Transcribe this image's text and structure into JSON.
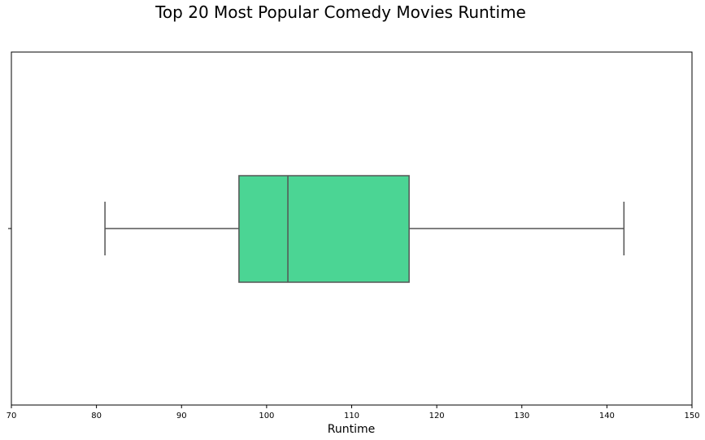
{
  "chart_data": {
    "type": "box",
    "title": "Top 20 Most Popular Comedy Movies Runtime",
    "xlabel": "Runtime",
    "ylabel": "",
    "xlim": [
      70,
      150
    ],
    "xticks": [
      "70",
      "80",
      "90",
      "100",
      "110",
      "120",
      "130",
      "140",
      "150"
    ],
    "grid": false,
    "box": {
      "whisker_low": 81,
      "q1": 96.75,
      "median": 102.5,
      "q3": 116.75,
      "whisker_high": 142
    },
    "colors": {
      "box_fill": "#4bd594",
      "line": "#555555"
    }
  }
}
